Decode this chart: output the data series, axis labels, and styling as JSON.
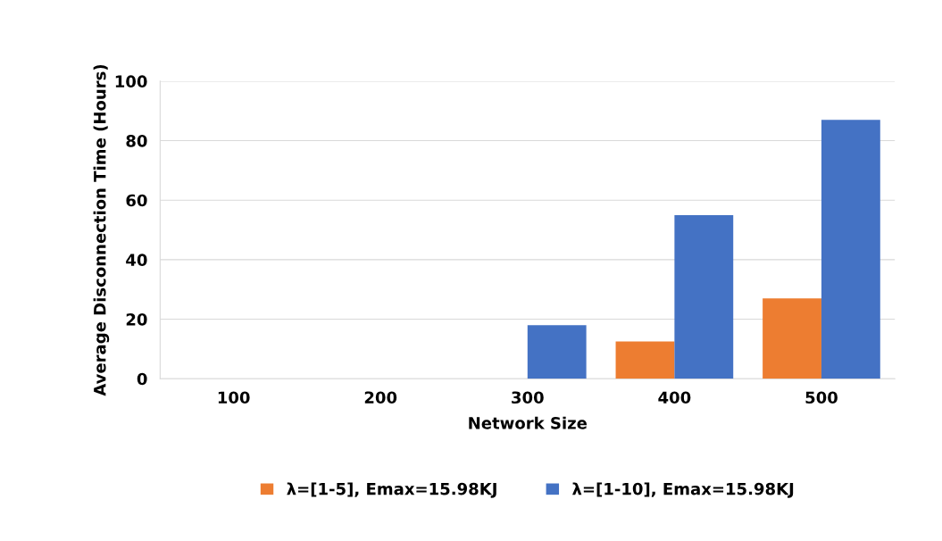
{
  "chart_data": {
    "type": "bar",
    "xlabel": "Network Size",
    "ylabel": "Average Disconnection Time (Hours)",
    "categories": [
      "100",
      "200",
      "300",
      "400",
      "500"
    ],
    "series": [
      {
        "name": "λ=[1-5], Emax=15.98KJ",
        "color": "#ed7d31",
        "values": [
          0,
          0,
          0,
          12.5,
          27
        ]
      },
      {
        "name": "λ=[1-10], Emax=15.98KJ",
        "color": "#4472c4",
        "values": [
          0,
          0,
          18,
          55,
          87
        ]
      }
    ],
    "ylim": [
      0,
      100
    ],
    "yticks": [
      0,
      20,
      40,
      60,
      80,
      100
    ],
    "grid": "y",
    "legend": "bottom"
  }
}
